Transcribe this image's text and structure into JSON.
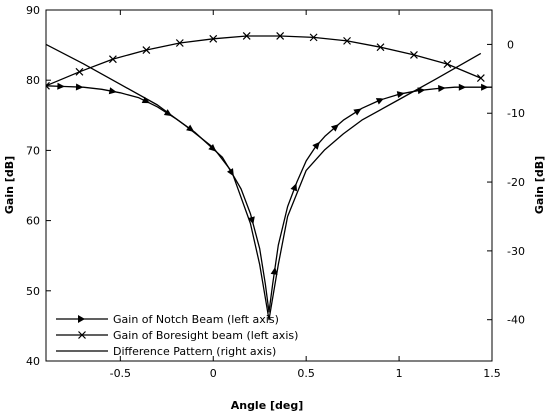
{
  "chart_data": {
    "type": "line",
    "xlabel": "Angle [deg]",
    "ylabel_left": "Gain [dB]",
    "ylabel_right": "Gain [dB]",
    "xlim": [
      -0.9,
      1.5
    ],
    "ylim_left": [
      40,
      90
    ],
    "ylim_right": [
      -46,
      5
    ],
    "x_ticks": [
      -0.5,
      0,
      0.5,
      1,
      1.5
    ],
    "y_ticks_left": [
      40,
      50,
      60,
      70,
      80,
      90
    ],
    "y_ticks_right": [
      -40,
      -30,
      -20,
      -10,
      0
    ],
    "grid": false,
    "legend_position": "bottom-left",
    "series": [
      {
        "name": "Gain of Notch Beam (left axis)",
        "axis": "left",
        "marker": "triangle-right",
        "x": [
          -0.9,
          -0.8,
          -0.7,
          -0.6,
          -0.5,
          -0.4,
          -0.3,
          -0.2,
          -0.1,
          0.0,
          0.05,
          0.1,
          0.15,
          0.2,
          0.25,
          0.28,
          0.3,
          0.32,
          0.35,
          0.4,
          0.45,
          0.5,
          0.55,
          0.6,
          0.7,
          0.8,
          0.9,
          1.0,
          1.1,
          1.2,
          1.3,
          1.4,
          1.5
        ],
        "y": [
          79.2,
          79.1,
          79.0,
          78.7,
          78.2,
          77.5,
          76.2,
          74.5,
          72.6,
          70.2,
          69.0,
          66.8,
          64.5,
          61.0,
          56.0,
          51.0,
          47.0,
          51.0,
          56.5,
          62.0,
          65.5,
          68.5,
          70.5,
          72.0,
          74.3,
          76.0,
          77.2,
          78.0,
          78.5,
          78.8,
          79.0,
          79.0,
          79.0
        ],
        "marker_x": [
          -0.82,
          -0.72,
          -0.54,
          -0.36,
          -0.24,
          -0.12,
          0.0,
          0.1,
          0.21,
          0.33,
          0.44,
          0.56,
          0.66,
          0.78,
          0.9,
          1.01,
          1.12,
          1.23,
          1.34,
          1.46
        ]
      },
      {
        "name": "Gain of Boresight beam (left axis)",
        "axis": "left",
        "marker": "x",
        "x": [
          -0.9,
          -0.72,
          -0.54,
          -0.36,
          -0.18,
          0.0,
          0.18,
          0.36,
          0.54,
          0.72,
          0.9,
          1.08,
          1.26,
          1.44
        ],
        "y": [
          79.2,
          81.2,
          83.0,
          84.3,
          85.3,
          85.9,
          86.3,
          86.3,
          86.1,
          85.6,
          84.7,
          83.6,
          82.3,
          80.3
        ]
      },
      {
        "name": "Difference Pattern (right axis)",
        "axis": "right",
        "marker": "none",
        "x": [
          -0.9,
          -0.7,
          -0.5,
          -0.3,
          -0.15,
          0.0,
          0.1,
          0.2,
          0.25,
          0.3,
          0.35,
          0.4,
          0.5,
          0.6,
          0.7,
          0.8,
          1.0,
          1.2,
          1.44
        ],
        "y": [
          0.0,
          -2.8,
          -5.8,
          -8.8,
          -11.8,
          -15.0,
          -18.5,
          -26.0,
          -32.0,
          -40.0,
          -32.0,
          -25.0,
          -18.3,
          -15.3,
          -13.0,
          -11.0,
          -8.0,
          -5.0,
          -1.3
        ]
      }
    ]
  }
}
